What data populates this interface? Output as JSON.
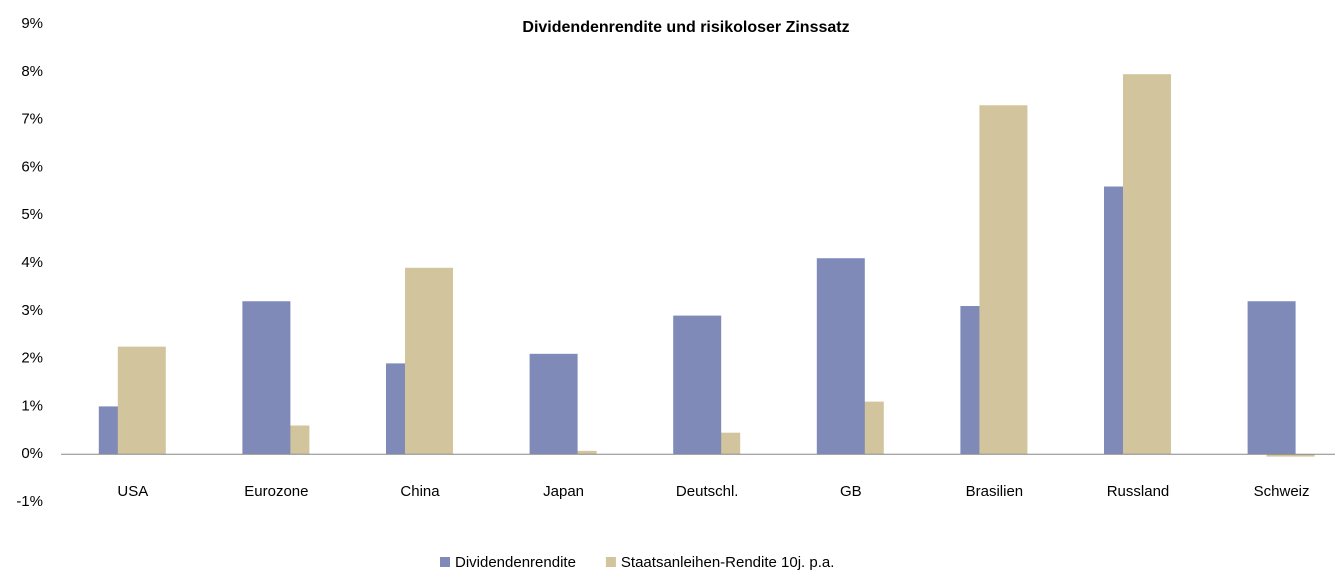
{
  "chart_data": {
    "type": "bar",
    "title": "Dividendenrendite und risikoloser Zinssatz",
    "categories": [
      "USA",
      "Eurozone",
      "China",
      "Japan",
      "Deutschl.",
      "GB",
      "Brasilien",
      "Russland",
      "Schweiz"
    ],
    "series": [
      {
        "name": "Dividendenrendite",
        "color": "#7f8ab8",
        "values": [
          1.0,
          3.2,
          1.9,
          2.1,
          2.9,
          4.1,
          3.1,
          5.6,
          3.2
        ]
      },
      {
        "name": "Staatsanleihen-Rendite 10j. p.a.",
        "color": "#d2c49c",
        "values": [
          2.25,
          0.6,
          3.9,
          0.07,
          0.45,
          1.1,
          7.3,
          7.95,
          -0.05
        ]
      }
    ],
    "ylim": [
      -1,
      9
    ],
    "yticks": [
      {
        "value": -1,
        "label": "-1%"
      },
      {
        "value": 0,
        "label": "0%"
      },
      {
        "value": 1,
        "label": "1%"
      },
      {
        "value": 2,
        "label": "2%"
      },
      {
        "value": 3,
        "label": "3%"
      },
      {
        "value": 4,
        "label": "4%"
      },
      {
        "value": 5,
        "label": "5%"
      },
      {
        "value": 6,
        "label": "6%"
      },
      {
        "value": 7,
        "label": "7%"
      },
      {
        "value": 8,
        "label": "8%"
      },
      {
        "value": 9,
        "label": "9%"
      }
    ],
    "grid": false,
    "legend": "bottom"
  }
}
